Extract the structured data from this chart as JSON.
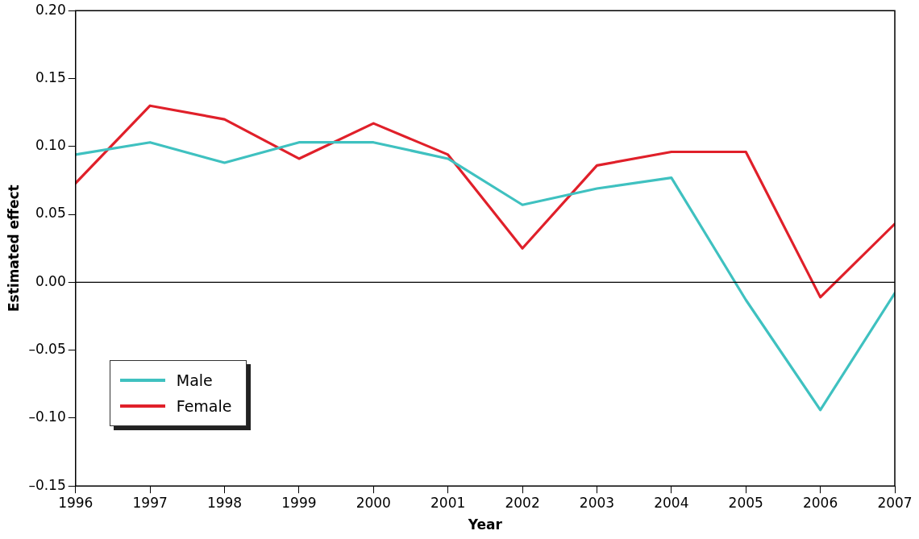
{
  "chart_data": {
    "type": "line",
    "xlabel": "Year",
    "ylabel": "Estimated effect",
    "x": [
      1996,
      1997,
      1998,
      1999,
      2000,
      2001,
      2002,
      2003,
      2004,
      2005,
      2006,
      2007
    ],
    "series": [
      {
        "name": "Male",
        "color": "#3fc1c0",
        "values": [
          0.094,
          0.103,
          0.088,
          0.103,
          0.103,
          0.091,
          0.057,
          0.069,
          0.077,
          -0.013,
          -0.094,
          -0.008
        ]
      },
      {
        "name": "Female",
        "color": "#e0202a",
        "values": [
          0.073,
          0.13,
          0.12,
          0.091,
          0.117,
          0.094,
          0.025,
          0.086,
          0.096,
          0.096,
          -0.011,
          0.043
        ]
      }
    ],
    "xlim": [
      1996,
      2007
    ],
    "xticks": [
      1996,
      1997,
      1998,
      1999,
      2000,
      2001,
      2002,
      2003,
      2004,
      2005,
      2006,
      2007
    ],
    "ylim": [
      -0.15,
      0.2
    ],
    "yticks": [
      {
        "value": -0.15,
        "label": "–0.15"
      },
      {
        "value": -0.1,
        "label": "–0.10"
      },
      {
        "value": -0.05,
        "label": "–0.05"
      },
      {
        "value": 0,
        "label": "0.00"
      },
      {
        "value": 0.05,
        "label": "0.05"
      },
      {
        "value": 0.1,
        "label": "0.10"
      },
      {
        "value": 0.15,
        "label": "0.15"
      },
      {
        "value": 0.2,
        "label": "0.20"
      }
    ],
    "ref_lines": [
      {
        "axis": "y",
        "value": 0,
        "color": "#000000"
      }
    ],
    "grid": false,
    "legend": "bottom left",
    "marker": "none",
    "line_style": "solid"
  }
}
